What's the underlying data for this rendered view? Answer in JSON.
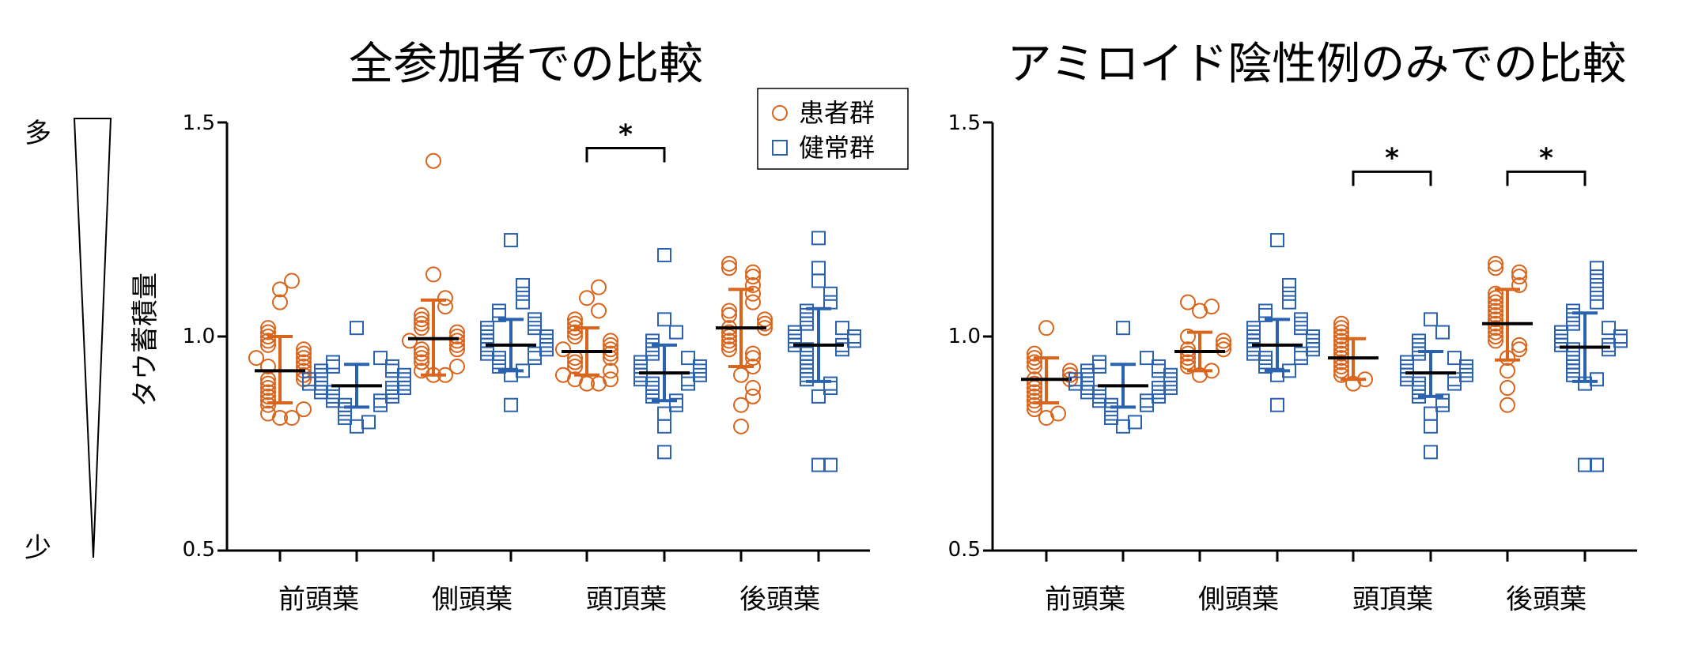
{
  "scale_indicator": {
    "top_label": "多",
    "bottom_label": "少"
  },
  "legend": {
    "entries": [
      {
        "label": "患者群",
        "marker": "circle",
        "color": "#d9641c"
      },
      {
        "label": "健常群",
        "marker": "square",
        "color": "#2a62b0"
      }
    ]
  },
  "colors": {
    "patient": "#d9641c",
    "healthy": "#2a62b0",
    "mean": "#000000"
  },
  "chart_data": [
    {
      "type": "scatter",
      "title": "全参加者での比較",
      "ylabel": "タウ蓄積量",
      "ylim": [
        0.5,
        1.5
      ],
      "yticks": [
        "0.5",
        "1.0",
        "1.5"
      ],
      "categories": [
        "前頭葉",
        "側頭葉",
        "頭頂葉",
        "後頭葉"
      ],
      "series": [
        {
          "name": "患者群",
          "marker": "circle",
          "groups": [
            {
              "mean": 0.92,
              "sd_low": 0.845,
              "sd_high": 1.0,
              "points": [
                1.13,
                1.11,
                1.08,
                1.02,
                1.01,
                1.0,
                0.99,
                0.98,
                0.97,
                0.96,
                0.95,
                0.95,
                0.94,
                0.93,
                0.93,
                0.92,
                0.91,
                0.9,
                0.9,
                0.89,
                0.88,
                0.87,
                0.86,
                0.85,
                0.84,
                0.83,
                0.82,
                0.81,
                0.81
              ]
            },
            {
              "mean": 0.995,
              "sd_low": 0.91,
              "sd_high": 1.085,
              "points": [
                1.41,
                1.145,
                1.09,
                1.07,
                1.05,
                1.04,
                1.03,
                1.02,
                1.01,
                1.0,
                0.99,
                0.99,
                0.98,
                0.97,
                0.97,
                0.96,
                0.95,
                0.94,
                0.93,
                0.92,
                0.91,
                0.91
              ]
            },
            {
              "mean": 0.965,
              "sd_low": 0.91,
              "sd_high": 1.02,
              "points": [
                1.115,
                1.09,
                1.06,
                1.04,
                1.03,
                1.02,
                1.01,
                1.0,
                0.99,
                0.98,
                0.97,
                0.97,
                0.96,
                0.95,
                0.95,
                0.94,
                0.93,
                0.92,
                0.91,
                0.9,
                0.89,
                0.89,
                0.9
              ]
            },
            {
              "mean": 1.02,
              "sd_low": 0.93,
              "sd_high": 1.11,
              "points": [
                1.17,
                1.16,
                1.15,
                1.14,
                1.12,
                1.1,
                1.08,
                1.06,
                1.05,
                1.04,
                1.03,
                1.02,
                1.02,
                1.01,
                1.0,
                0.99,
                0.98,
                0.97,
                0.96,
                0.95,
                0.93,
                0.91,
                0.88,
                0.86,
                0.84,
                0.79
              ]
            }
          ]
        },
        {
          "name": "健常群",
          "marker": "square",
          "groups": [
            {
              "mean": 0.885,
              "sd_low": 0.835,
              "sd_high": 0.935,
              "points": [
                1.02,
                0.95,
                0.94,
                0.93,
                0.93,
                0.92,
                0.92,
                0.91,
                0.91,
                0.9,
                0.9,
                0.9,
                0.89,
                0.89,
                0.89,
                0.88,
                0.88,
                0.88,
                0.87,
                0.87,
                0.87,
                0.86,
                0.86,
                0.85,
                0.85,
                0.84,
                0.84,
                0.83,
                0.82,
                0.81,
                0.8,
                0.79
              ]
            },
            {
              "mean": 0.98,
              "sd_low": 0.92,
              "sd_high": 1.04,
              "points": [
                1.225,
                1.12,
                1.1,
                1.08,
                1.06,
                1.05,
                1.04,
                1.03,
                1.02,
                1.02,
                1.01,
                1.0,
                1.0,
                0.99,
                0.99,
                0.98,
                0.98,
                0.97,
                0.97,
                0.96,
                0.96,
                0.95,
                0.95,
                0.94,
                0.93,
                0.92,
                0.91,
                0.84
              ]
            },
            {
              "mean": 0.915,
              "sd_low": 0.85,
              "sd_high": 0.98,
              "points": [
                1.19,
                1.04,
                1.01,
                0.99,
                0.98,
                0.97,
                0.96,
                0.95,
                0.94,
                0.93,
                0.93,
                0.92,
                0.92,
                0.91,
                0.91,
                0.9,
                0.9,
                0.89,
                0.89,
                0.88,
                0.87,
                0.86,
                0.85,
                0.84,
                0.82,
                0.79,
                0.73
              ]
            },
            {
              "mean": 0.98,
              "sd_low": 0.895,
              "sd_high": 1.065,
              "points": [
                1.23,
                1.16,
                1.13,
                1.1,
                1.08,
                1.06,
                1.05,
                1.04,
                1.03,
                1.02,
                1.01,
                1.0,
                1.0,
                0.99,
                0.99,
                0.98,
                0.98,
                0.97,
                0.97,
                0.96,
                0.95,
                0.94,
                0.93,
                0.92,
                0.91,
                0.9,
                0.89,
                0.88,
                0.86,
                0.7,
                0.7
              ]
            }
          ]
        }
      ],
      "significance": [
        {
          "category": "頭頂葉",
          "label": "*",
          "y": 1.44
        }
      ]
    },
    {
      "type": "scatter",
      "title": "アミロイド陰性例のみでの比較",
      "ylim": [
        0.5,
        1.5
      ],
      "yticks": [
        "0.5",
        "1.0",
        "1.5"
      ],
      "categories": [
        "前頭葉",
        "側頭葉",
        "頭頂葉",
        "後頭葉"
      ],
      "series": [
        {
          "name": "患者群",
          "marker": "circle",
          "groups": [
            {
              "mean": 0.9,
              "sd_low": 0.845,
              "sd_high": 0.95,
              "points": [
                1.02,
                0.96,
                0.95,
                0.94,
                0.93,
                0.92,
                0.91,
                0.9,
                0.9,
                0.89,
                0.88,
                0.87,
                0.86,
                0.85,
                0.84,
                0.83,
                0.82,
                0.81
              ]
            },
            {
              "mean": 0.965,
              "sd_low": 0.92,
              "sd_high": 1.01,
              "points": [
                1.08,
                1.07,
                1.06,
                1.0,
                0.99,
                0.98,
                0.97,
                0.97,
                0.96,
                0.95,
                0.94,
                0.93,
                0.92,
                0.91
              ]
            },
            {
              "mean": 0.95,
              "sd_low": 0.9,
              "sd_high": 0.995,
              "points": [
                1.03,
                1.02,
                1.01,
                1.0,
                0.99,
                0.98,
                0.97,
                0.96,
                0.95,
                0.94,
                0.93,
                0.92,
                0.91,
                0.9,
                0.89
              ]
            },
            {
              "mean": 1.03,
              "sd_low": 0.945,
              "sd_high": 1.11,
              "points": [
                1.17,
                1.16,
                1.15,
                1.14,
                1.12,
                1.1,
                1.09,
                1.08,
                1.07,
                1.06,
                1.05,
                1.04,
                1.03,
                1.02,
                1.01,
                1.0,
                0.99,
                0.98,
                0.97,
                0.95,
                0.92,
                0.88,
                0.84
              ]
            }
          ]
        },
        {
          "name": "健常群",
          "marker": "square",
          "groups": [
            {
              "mean": 0.885,
              "sd_low": 0.835,
              "sd_high": 0.935,
              "points": [
                1.02,
                0.95,
                0.94,
                0.93,
                0.93,
                0.92,
                0.92,
                0.91,
                0.91,
                0.9,
                0.9,
                0.9,
                0.89,
                0.89,
                0.89,
                0.88,
                0.88,
                0.88,
                0.87,
                0.87,
                0.87,
                0.86,
                0.86,
                0.85,
                0.85,
                0.84,
                0.84,
                0.83,
                0.82,
                0.81,
                0.8,
                0.79
              ]
            },
            {
              "mean": 0.98,
              "sd_low": 0.92,
              "sd_high": 1.04,
              "points": [
                1.225,
                1.12,
                1.1,
                1.08,
                1.06,
                1.05,
                1.04,
                1.03,
                1.02,
                1.02,
                1.01,
                1.0,
                1.0,
                0.99,
                0.99,
                0.98,
                0.98,
                0.97,
                0.97,
                0.96,
                0.96,
                0.95,
                0.95,
                0.94,
                0.93,
                0.92,
                0.91,
                0.84
              ]
            },
            {
              "mean": 0.915,
              "sd_low": 0.86,
              "sd_high": 0.965,
              "points": [
                1.04,
                1.01,
                0.99,
                0.98,
                0.97,
                0.96,
                0.95,
                0.94,
                0.93,
                0.93,
                0.92,
                0.92,
                0.91,
                0.91,
                0.9,
                0.9,
                0.89,
                0.89,
                0.88,
                0.87,
                0.86,
                0.85,
                0.84,
                0.82,
                0.79,
                0.73
              ]
            },
            {
              "mean": 0.975,
              "sd_low": 0.895,
              "sd_high": 1.055,
              "points": [
                1.16,
                1.14,
                1.12,
                1.1,
                1.08,
                1.06,
                1.05,
                1.04,
                1.03,
                1.02,
                1.01,
                1.0,
                1.0,
                0.99,
                0.99,
                0.98,
                0.98,
                0.97,
                0.97,
                0.96,
                0.95,
                0.94,
                0.93,
                0.92,
                0.91,
                0.9,
                0.89,
                0.7,
                0.7
              ]
            }
          ]
        }
      ],
      "significance": [
        {
          "category": "頭頂葉",
          "label": "*",
          "y": 1.385
        },
        {
          "category": "後頭葉",
          "label": "*",
          "y": 1.385
        }
      ]
    }
  ]
}
